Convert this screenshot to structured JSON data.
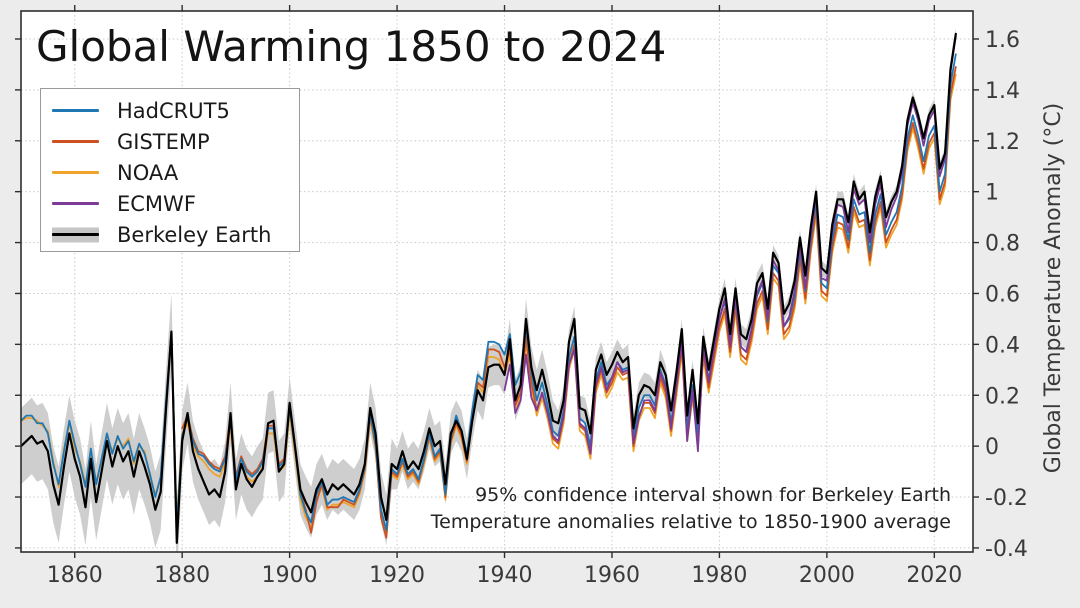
{
  "chart": {
    "background": "#ececec",
    "plot_background": "#ffffff",
    "grid_color": "#c9c9c9",
    "spine_color": "#2e2e2e",
    "tick_color": "#2e2e2e",
    "tick_label_color": "#3a3a3a"
  },
  "chart_data": {
    "type": "line",
    "title": "Global Warming 1850 to 2024",
    "xlabel": "",
    "ylabel": "Global Temperature Anomaly (°C)",
    "annotations": [
      "95% confidence interval shown for Berkeley Earth",
      "Temperature anomalies relative to 1850-1900 average"
    ],
    "grid": true,
    "legend_position": "upper-left",
    "xlim": [
      1850,
      2027.2
    ],
    "ylim": [
      -0.416,
      1.71
    ],
    "x_ticks": [
      1860,
      1880,
      1900,
      1920,
      1940,
      1960,
      1980,
      2000,
      2020
    ],
    "x_tick_labels": [
      "1860",
      "1880",
      "1900",
      "1920",
      "1940",
      "1960",
      "1980",
      "2000",
      "2020"
    ],
    "y_tick_values": [
      1.6,
      1.4,
      1.2,
      1.0,
      0.8,
      0.6,
      0.4,
      0.2,
      0.0,
      -0.2,
      -0.4
    ],
    "y_tick_labels": [
      "1.6",
      "1.4",
      "1.2",
      "1",
      "0.8",
      "0.6",
      "0.4",
      "0.2",
      "0",
      "-0.2",
      "-0.4"
    ],
    "draw_order": [
      2,
      1,
      0,
      3,
      4
    ],
    "series": [
      {
        "name": "HadCRUT5",
        "color": "#1f77b4",
        "start_year": 1850,
        "values": [
          0.1,
          0.12,
          0.12,
          0.09,
          0.09,
          0.05,
          -0.07,
          -0.15,
          -0.02,
          0.1,
          0.01,
          -0.07,
          -0.16,
          -0.01,
          -0.15,
          -0.05,
          0.05,
          -0.03,
          0.04,
          -0.01,
          0.02,
          -0.06,
          0.01,
          -0.03,
          -0.11,
          -0.2,
          -0.12,
          0.18,
          0.45,
          -0.32,
          0.04,
          0.11,
          0.02,
          -0.03,
          -0.04,
          -0.07,
          -0.09,
          -0.1,
          -0.05,
          0.1,
          -0.13,
          -0.05,
          -0.1,
          -0.12,
          -0.1,
          -0.06,
          0.07,
          0.07,
          -0.08,
          -0.06,
          0.15,
          -0.01,
          -0.19,
          -0.26,
          -0.3,
          -0.19,
          -0.14,
          -0.23,
          -0.21,
          -0.21,
          -0.2,
          -0.21,
          -0.22,
          -0.17,
          -0.08,
          0.13,
          0.01,
          -0.25,
          -0.33,
          -0.09,
          -0.11,
          -0.05,
          -0.11,
          -0.09,
          -0.13,
          -0.05,
          0.05,
          -0.04,
          -0.01,
          -0.19,
          0.03,
          0.12,
          0.06,
          -0.03,
          0.14,
          0.28,
          0.26,
          0.41,
          0.41,
          0.4,
          0.36,
          0.44,
          0.24,
          0.29,
          0.47,
          0.29,
          0.18,
          0.25,
          0.16,
          0.06,
          0.04,
          0.14,
          0.35,
          0.43,
          0.11,
          0.09,
          0.0,
          0.26,
          0.33,
          0.24,
          0.27,
          0.33,
          0.3,
          0.31,
          0.04,
          0.15,
          0.2,
          0.2,
          0.16,
          0.3,
          0.24,
          0.09,
          0.25,
          0.42,
          0.07,
          0.24,
          0.05,
          0.4,
          0.26,
          0.38,
          0.5,
          0.57,
          0.4,
          0.58,
          0.39,
          0.37,
          0.46,
          0.59,
          0.64,
          0.49,
          0.71,
          0.68,
          0.47,
          0.5,
          0.59,
          0.77,
          0.61,
          0.81,
          0.96,
          0.64,
          0.62,
          0.81,
          0.91,
          0.9,
          0.81,
          0.97,
          0.91,
          0.92,
          0.76,
          0.91,
          0.99,
          0.83,
          0.88,
          0.92,
          1.02,
          1.21,
          1.3,
          1.22,
          1.12,
          1.22,
          1.26,
          1.0,
          1.07,
          1.42,
          1.54
        ]
      },
      {
        "name": "GISTEMP",
        "color": "#cd5120",
        "start_year": 1880,
        "values": [
          0.07,
          0.12,
          0.03,
          -0.02,
          -0.03,
          -0.06,
          -0.08,
          -0.09,
          -0.04,
          0.12,
          -0.12,
          -0.04,
          -0.09,
          -0.11,
          -0.09,
          -0.05,
          0.08,
          0.08,
          -0.07,
          -0.05,
          0.16,
          0.0,
          -0.18,
          -0.25,
          -0.34,
          -0.22,
          -0.15,
          -0.24,
          -0.24,
          -0.24,
          -0.21,
          -0.22,
          -0.23,
          -0.18,
          -0.09,
          0.12,
          0.0,
          -0.28,
          -0.36,
          -0.1,
          -0.12,
          -0.06,
          -0.12,
          -0.1,
          -0.14,
          -0.06,
          0.04,
          -0.05,
          -0.02,
          -0.2,
          0.02,
          0.09,
          0.04,
          -0.06,
          0.11,
          0.25,
          0.23,
          0.38,
          0.38,
          0.37,
          0.31,
          0.38,
          0.16,
          0.21,
          0.43,
          0.25,
          0.14,
          0.21,
          0.13,
          0.03,
          0.01,
          0.11,
          0.32,
          0.4,
          0.08,
          0.06,
          -0.03,
          0.23,
          0.3,
          0.21,
          0.25,
          0.31,
          0.28,
          0.29,
          0.0,
          0.12,
          0.17,
          0.17,
          0.13,
          0.27,
          0.21,
          0.06,
          0.22,
          0.39,
          0.04,
          0.21,
          0.04,
          0.37,
          0.23,
          0.35,
          0.47,
          0.54,
          0.37,
          0.55,
          0.36,
          0.34,
          0.43,
          0.56,
          0.61,
          0.46,
          0.68,
          0.65,
          0.44,
          0.47,
          0.56,
          0.74,
          0.58,
          0.78,
          0.93,
          0.61,
          0.59,
          0.78,
          0.88,
          0.87,
          0.78,
          0.94,
          0.88,
          0.89,
          0.73,
          0.88,
          0.96,
          0.8,
          0.85,
          0.89,
          0.99,
          1.18,
          1.27,
          1.19,
          1.09,
          1.19,
          1.23,
          0.97,
          1.04,
          1.38,
          1.49
        ]
      },
      {
        "name": "NOAA",
        "color": "#f0a32a",
        "start_year": 1850,
        "values": [
          0.1,
          0.11,
          0.11,
          0.1,
          0.08,
          0.06,
          -0.06,
          -0.16,
          -0.01,
          0.09,
          -0.01,
          -0.06,
          -0.15,
          -0.02,
          -0.14,
          -0.06,
          0.04,
          -0.02,
          0.03,
          0.0,
          0.03,
          -0.07,
          0.0,
          -0.02,
          -0.12,
          -0.19,
          -0.13,
          0.17,
          0.43,
          -0.3,
          0.05,
          0.09,
          0.0,
          -0.04,
          -0.06,
          -0.09,
          -0.11,
          -0.12,
          -0.07,
          0.08,
          -0.15,
          -0.07,
          -0.12,
          -0.14,
          -0.12,
          -0.08,
          0.05,
          0.05,
          -0.1,
          -0.08,
          0.13,
          -0.03,
          -0.21,
          -0.28,
          -0.32,
          -0.21,
          -0.16,
          -0.25,
          -0.23,
          -0.23,
          -0.22,
          -0.23,
          -0.24,
          -0.19,
          -0.1,
          0.11,
          -0.01,
          -0.27,
          -0.35,
          -0.11,
          -0.13,
          -0.07,
          -0.13,
          -0.11,
          -0.15,
          -0.07,
          0.03,
          -0.06,
          -0.03,
          -0.21,
          0.01,
          0.08,
          0.03,
          -0.07,
          0.1,
          0.24,
          0.21,
          0.35,
          0.35,
          0.34,
          0.28,
          0.36,
          0.14,
          0.19,
          0.41,
          0.23,
          0.12,
          0.19,
          0.11,
          0.01,
          -0.01,
          0.09,
          0.3,
          0.38,
          0.06,
          0.04,
          -0.05,
          0.21,
          0.28,
          0.19,
          0.23,
          0.29,
          0.26,
          0.27,
          -0.02,
          0.1,
          0.15,
          0.15,
          0.11,
          0.25,
          0.19,
          0.04,
          0.2,
          0.37,
          0.02,
          0.19,
          0.02,
          0.35,
          0.21,
          0.33,
          0.45,
          0.52,
          0.35,
          0.53,
          0.34,
          0.32,
          0.41,
          0.54,
          0.59,
          0.44,
          0.66,
          0.63,
          0.42,
          0.45,
          0.54,
          0.72,
          0.56,
          0.76,
          0.91,
          0.59,
          0.57,
          0.76,
          0.86,
          0.85,
          0.76,
          0.92,
          0.86,
          0.87,
          0.71,
          0.86,
          0.94,
          0.78,
          0.83,
          0.87,
          0.97,
          1.16,
          1.25,
          1.17,
          1.07,
          1.17,
          1.21,
          0.95,
          1.02,
          1.36,
          1.46
        ]
      },
      {
        "name": "ECMWF",
        "color": "#7d3a96",
        "start_year": 1940,
        "values": [
          0.22,
          0.32,
          0.13,
          0.18,
          0.36,
          0.19,
          0.14,
          0.21,
          0.13,
          0.04,
          0.02,
          0.12,
          0.32,
          0.38,
          0.09,
          0.07,
          -0.03,
          0.24,
          0.31,
          0.22,
          0.27,
          0.33,
          0.29,
          0.3,
          0.01,
          0.11,
          0.18,
          0.18,
          0.14,
          0.29,
          0.23,
          0.07,
          0.24,
          0.41,
          0.02,
          0.22,
          -0.02,
          0.39,
          0.25,
          0.38,
          0.5,
          0.58,
          0.39,
          0.59,
          0.39,
          0.37,
          0.46,
          0.6,
          0.65,
          0.5,
          0.73,
          0.69,
          0.47,
          0.51,
          0.61,
          0.79,
          0.62,
          0.83,
          0.98,
          0.66,
          0.65,
          0.84,
          0.95,
          0.94,
          0.84,
          1.01,
          0.95,
          0.97,
          0.8,
          0.95,
          1.03,
          0.86,
          0.93,
          0.98,
          1.07,
          1.26,
          1.35,
          1.28,
          1.18,
          1.28,
          1.32,
          1.06,
          1.13,
          1.47,
          1.61
        ]
      },
      {
        "name": "Berkeley Earth",
        "color": "#000000",
        "ci_color": "#c6c6c6",
        "start_year": 1850,
        "values": [
          0.0,
          0.02,
          0.04,
          0.01,
          0.02,
          -0.02,
          -0.15,
          -0.23,
          -0.08,
          0.05,
          -0.05,
          -0.12,
          -0.24,
          -0.05,
          -0.22,
          -0.1,
          0.02,
          -0.08,
          0.0,
          -0.06,
          -0.02,
          -0.12,
          -0.02,
          -0.08,
          -0.15,
          -0.25,
          -0.18,
          0.15,
          0.45,
          -0.38,
          0.02,
          0.13,
          -0.02,
          -0.09,
          -0.14,
          -0.19,
          -0.17,
          -0.2,
          -0.1,
          0.13,
          -0.17,
          -0.07,
          -0.13,
          -0.16,
          -0.12,
          -0.09,
          0.09,
          0.1,
          -0.1,
          -0.07,
          0.17,
          0.0,
          -0.17,
          -0.22,
          -0.26,
          -0.17,
          -0.13,
          -0.19,
          -0.15,
          -0.17,
          -0.15,
          -0.17,
          -0.19,
          -0.15,
          -0.07,
          0.15,
          0.05,
          -0.2,
          -0.29,
          -0.07,
          -0.09,
          -0.02,
          -0.09,
          -0.06,
          -0.09,
          -0.02,
          0.07,
          0.0,
          0.02,
          -0.15,
          0.05,
          0.1,
          0.06,
          -0.05,
          0.1,
          0.22,
          0.18,
          0.31,
          0.32,
          0.32,
          0.28,
          0.42,
          0.18,
          0.24,
          0.5,
          0.31,
          0.22,
          0.3,
          0.21,
          0.1,
          0.09,
          0.18,
          0.41,
          0.5,
          0.15,
          0.14,
          0.05,
          0.3,
          0.36,
          0.28,
          0.32,
          0.37,
          0.33,
          0.35,
          0.07,
          0.2,
          0.24,
          0.23,
          0.2,
          0.33,
          0.28,
          0.14,
          0.29,
          0.46,
          0.12,
          0.3,
          0.09,
          0.43,
          0.3,
          0.42,
          0.54,
          0.62,
          0.44,
          0.62,
          0.44,
          0.42,
          0.5,
          0.64,
          0.68,
          0.54,
          0.76,
          0.72,
          0.52,
          0.56,
          0.65,
          0.82,
          0.67,
          0.86,
          1.0,
          0.7,
          0.68,
          0.87,
          0.97,
          0.97,
          0.88,
          1.04,
          0.97,
          1.0,
          0.84,
          0.98,
          1.06,
          0.9,
          0.96,
          1.0,
          1.1,
          1.28,
          1.37,
          1.3,
          1.21,
          1.3,
          1.34,
          1.09,
          1.15,
          1.48,
          1.62
        ],
        "ci_halfwidth": [
          0.15,
          0.15,
          0.15,
          0.15,
          0.15,
          0.15,
          0.15,
          0.15,
          0.15,
          0.15,
          0.15,
          0.15,
          0.15,
          0.15,
          0.15,
          0.15,
          0.15,
          0.15,
          0.15,
          0.15,
          0.15,
          0.15,
          0.15,
          0.15,
          0.15,
          0.15,
          0.15,
          0.15,
          0.15,
          0.15,
          0.12,
          0.12,
          0.12,
          0.12,
          0.12,
          0.12,
          0.12,
          0.12,
          0.12,
          0.12,
          0.12,
          0.12,
          0.12,
          0.12,
          0.12,
          0.12,
          0.12,
          0.12,
          0.12,
          0.12,
          0.1,
          0.1,
          0.1,
          0.1,
          0.1,
          0.1,
          0.1,
          0.1,
          0.1,
          0.1,
          0.1,
          0.1,
          0.1,
          0.1,
          0.1,
          0.1,
          0.1,
          0.1,
          0.1,
          0.1,
          0.08,
          0.08,
          0.08,
          0.08,
          0.08,
          0.08,
          0.08,
          0.08,
          0.08,
          0.08,
          0.08,
          0.08,
          0.08,
          0.08,
          0.08,
          0.08,
          0.08,
          0.08,
          0.08,
          0.08,
          0.08,
          0.08,
          0.08,
          0.08,
          0.08,
          0.08,
          0.08,
          0.08,
          0.08,
          0.08,
          0.05,
          0.05,
          0.05,
          0.05,
          0.05,
          0.05,
          0.05,
          0.05,
          0.05,
          0.05,
          0.05,
          0.05,
          0.05,
          0.05,
          0.05,
          0.05,
          0.05,
          0.05,
          0.05,
          0.05,
          0.04,
          0.04,
          0.04,
          0.04,
          0.04,
          0.04,
          0.04,
          0.04,
          0.04,
          0.04,
          0.04,
          0.04,
          0.04,
          0.04,
          0.04,
          0.04,
          0.04,
          0.04,
          0.04,
          0.04,
          0.03,
          0.03,
          0.03,
          0.03,
          0.03,
          0.03,
          0.03,
          0.03,
          0.03,
          0.03,
          0.03,
          0.03,
          0.03,
          0.03,
          0.03,
          0.03,
          0.03,
          0.03,
          0.03,
          0.03,
          0.025,
          0.025,
          0.025,
          0.025,
          0.025,
          0.025,
          0.025,
          0.025,
          0.025,
          0.025,
          0.025,
          0.025,
          0.025,
          0.025,
          0.025
        ]
      }
    ]
  }
}
